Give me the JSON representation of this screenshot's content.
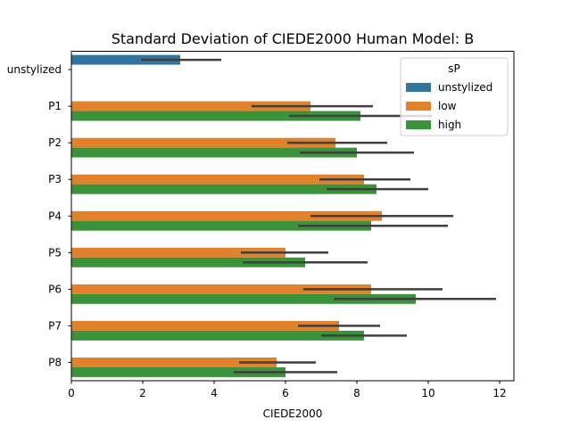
{
  "chart_data": {
    "type": "bar",
    "orientation": "horizontal",
    "title": "Standard Deviation of CIEDE2000 Human Model: B",
    "xlabel": "CIEDE2000",
    "ylabel": "",
    "xlim": [
      0,
      12.4
    ],
    "xticks": [
      "0",
      "2",
      "4",
      "6",
      "8",
      "10",
      "12"
    ],
    "grid": false,
    "categories": [
      "unstylized",
      "P1",
      "P2",
      "P3",
      "P4",
      "P5",
      "P6",
      "P7",
      "P8"
    ],
    "legend": {
      "title": "sP",
      "placement": "top-right"
    },
    "series": [
      {
        "name": "unstylized",
        "color": "#3274a1",
        "values": [
          3.05,
          null,
          null,
          null,
          null,
          null,
          null,
          null,
          null
        ],
        "ci": [
          [
            1.95,
            4.2
          ],
          null,
          null,
          null,
          null,
          null,
          null,
          null,
          null
        ]
      },
      {
        "name": "low",
        "color": "#e1812c",
        "values": [
          null,
          6.7,
          7.4,
          8.2,
          8.7,
          6.0,
          8.4,
          7.5,
          5.75
        ],
        "ci": [
          null,
          [
            5.05,
            8.45
          ],
          [
            6.05,
            8.85
          ],
          [
            6.95,
            9.5
          ],
          [
            6.7,
            10.7
          ],
          [
            4.75,
            7.2
          ],
          [
            6.5,
            10.4
          ],
          [
            6.35,
            8.65
          ],
          [
            4.7,
            6.85
          ]
        ]
      },
      {
        "name": "high",
        "color": "#3a923a",
        "values": [
          null,
          8.1,
          8.0,
          8.55,
          8.4,
          6.55,
          9.65,
          8.2,
          6.0
        ],
        "ci": [
          null,
          [
            6.1,
            10.1
          ],
          [
            6.4,
            9.6
          ],
          [
            7.15,
            10.0
          ],
          [
            6.35,
            10.55
          ],
          [
            4.8,
            8.3
          ],
          [
            7.35,
            11.9
          ],
          [
            7.0,
            9.4
          ],
          [
            4.55,
            7.45
          ]
        ]
      }
    ]
  }
}
